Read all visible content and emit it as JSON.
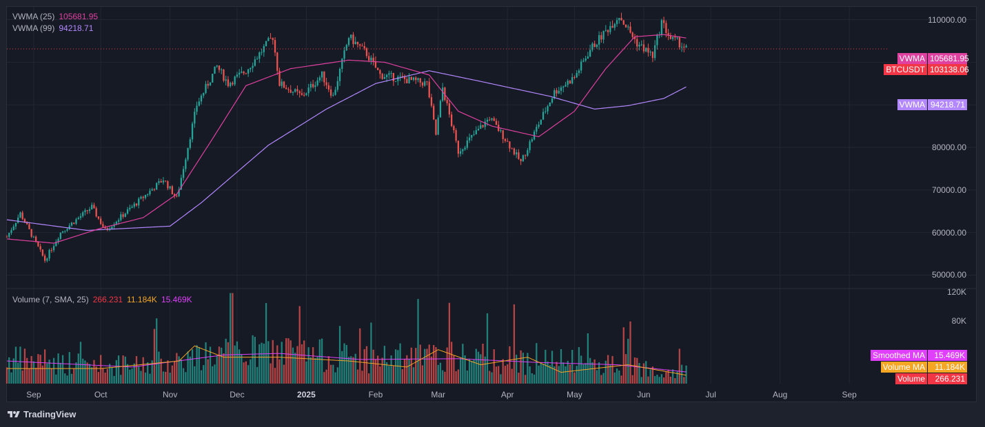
{
  "chart_data": {
    "type": "candlestick",
    "symbol": "BTCUSDT",
    "last_price": "103138.06",
    "price_axis": {
      "ticks": [
        "110000.00",
        "100000.00",
        "90000.00",
        "80000.00",
        "70000.00",
        "60000.00",
        "50000.00"
      ],
      "range": [
        47000,
        113000
      ]
    },
    "volume_axis": {
      "ticks": [
        "120K",
        "80K"
      ]
    },
    "time_axis": {
      "labels": [
        "Sep",
        "Oct",
        "Nov",
        "Dec",
        "2025",
        "Feb",
        "Mar",
        "Apr",
        "May",
        "Jun",
        "Jul",
        "Aug",
        "Sep"
      ]
    },
    "indicators": [
      {
        "label": "VWMA (25)",
        "value": "105681.95",
        "color": "#e040a0"
      },
      {
        "label": "VWMA (99)",
        "value": "94218.71",
        "color": "#b388ff"
      }
    ],
    "volume_legend": {
      "label": "Volume (7, SMA, 25)",
      "values": [
        "266.231",
        "11.184K",
        "15.469K"
      ],
      "colors": [
        "#f23645",
        "#f5a623",
        "#e040fb"
      ]
    },
    "price_badges": [
      {
        "label": "VWMA",
        "value": "105681.95",
        "color": "#e040a0"
      },
      {
        "label": "BTCUSDT",
        "value": "103138.06",
        "color": "#f23645"
      },
      {
        "label": "VWMA",
        "value": "94218.71",
        "color": "#b388ff"
      }
    ],
    "volume_badges": [
      {
        "label": "Smoothed MA",
        "value": "15.469K",
        "color": "#e040fb"
      },
      {
        "label": "Volume MA",
        "value": "11.184K",
        "color": "#f5a623"
      },
      {
        "label": "Volume",
        "value": "266.231",
        "color": "#f23645"
      }
    ],
    "close_path": [
      [
        "2024-08-20",
        59000
      ],
      [
        "2024-08-26",
        64500
      ],
      [
        "2024-09-06",
        53500
      ],
      [
        "2024-09-13",
        60000
      ],
      [
        "2024-09-27",
        66000
      ],
      [
        "2024-10-03",
        60500
      ],
      [
        "2024-10-15",
        66000
      ],
      [
        "2024-10-29",
        72500
      ],
      [
        "2024-11-04",
        68000
      ],
      [
        "2024-11-13",
        90000
      ],
      [
        "2024-11-22",
        99000
      ],
      [
        "2024-11-27",
        95000
      ],
      [
        "2024-12-05",
        98000
      ],
      [
        "2024-12-17",
        106000
      ],
      [
        "2024-12-20",
        95000
      ],
      [
        "2024-12-30",
        92000
      ],
      [
        "2025-01-08",
        97000
      ],
      [
        "2025-01-13",
        92000
      ],
      [
        "2025-01-20",
        106000
      ],
      [
        "2025-01-28",
        102000
      ],
      [
        "2025-02-03",
        97000
      ],
      [
        "2025-02-24",
        95000
      ],
      [
        "2025-02-28",
        83000
      ],
      [
        "2025-03-03",
        94000
      ],
      [
        "2025-03-10",
        79000
      ],
      [
        "2025-03-24",
        87000
      ],
      [
        "2025-03-31",
        82000
      ],
      [
        "2025-04-07",
        76500
      ],
      [
        "2025-04-14",
        84500
      ],
      [
        "2025-04-22",
        93000
      ],
      [
        "2025-05-01",
        96500
      ],
      [
        "2025-05-08",
        103000
      ],
      [
        "2025-05-21",
        111000
      ],
      [
        "2025-05-29",
        104500
      ],
      [
        "2025-06-05",
        101500
      ],
      [
        "2025-06-09",
        109500
      ],
      [
        "2025-06-13",
        105500
      ],
      [
        "2025-06-17",
        104500
      ],
      [
        "2025-06-20",
        103138
      ]
    ],
    "vwma25_path": [
      [
        "2024-08-20",
        58500
      ],
      [
        "2024-09-10",
        57500
      ],
      [
        "2024-10-01",
        61000
      ],
      [
        "2024-10-20",
        63500
      ],
      [
        "2024-11-04",
        69000
      ],
      [
        "2024-11-20",
        82000
      ],
      [
        "2024-12-05",
        94500
      ],
      [
        "2024-12-25",
        98500
      ],
      [
        "2025-01-20",
        100500
      ],
      [
        "2025-02-05",
        100000
      ],
      [
        "2025-02-25",
        97000
      ],
      [
        "2025-03-10",
        88500
      ],
      [
        "2025-03-25",
        85000
      ],
      [
        "2025-04-15",
        82500
      ],
      [
        "2025-05-01",
        88500
      ],
      [
        "2025-05-15",
        98500
      ],
      [
        "2025-05-28",
        106000
      ],
      [
        "2025-06-10",
        106500
      ],
      [
        "2025-06-20",
        105682
      ]
    ],
    "vwma99_path": [
      [
        "2024-08-20",
        63000
      ],
      [
        "2024-09-25",
        60500
      ],
      [
        "2024-11-01",
        61500
      ],
      [
        "2024-11-15",
        67000
      ],
      [
        "2024-12-15",
        80500
      ],
      [
        "2025-01-10",
        89000
      ],
      [
        "2025-02-01",
        95000
      ],
      [
        "2025-02-25",
        98000
      ],
      [
        "2025-03-20",
        95500
      ],
      [
        "2025-04-20",
        92000
      ],
      [
        "2025-05-10",
        89000
      ],
      [
        "2025-05-25",
        89800
      ],
      [
        "2025-06-10",
        91500
      ],
      [
        "2025-06-20",
        94219
      ]
    ],
    "volume_ma_path": [
      [
        "2024-08-20",
        20000
      ],
      [
        "2024-10-01",
        20000
      ],
      [
        "2024-11-05",
        30000
      ],
      [
        "2024-11-12",
        50000
      ],
      [
        "2024-11-25",
        35000
      ],
      [
        "2024-12-20",
        35000
      ],
      [
        "2025-01-20",
        30000
      ],
      [
        "2025-02-15",
        22000
      ],
      [
        "2025-03-01",
        45000
      ],
      [
        "2025-03-20",
        25000
      ],
      [
        "2025-04-10",
        35000
      ],
      [
        "2025-04-25",
        15000
      ],
      [
        "2025-05-25",
        25000
      ],
      [
        "2025-06-20",
        11184
      ]
    ],
    "smoothed_ma_path": [
      [
        "2024-08-20",
        30000
      ],
      [
        "2024-10-15",
        22000
      ],
      [
        "2024-11-25",
        38000
      ],
      [
        "2024-12-20",
        40000
      ],
      [
        "2025-01-25",
        32000
      ],
      [
        "2025-03-10",
        33000
      ],
      [
        "2025-04-15",
        28000
      ],
      [
        "2025-05-20",
        25000
      ],
      [
        "2025-06-20",
        15469
      ]
    ],
    "volume_range": [
      0,
      125000
    ],
    "date_range": [
      "2024-08-20",
      "2025-09-25"
    ]
  },
  "branding": {
    "name": "TradingView"
  }
}
